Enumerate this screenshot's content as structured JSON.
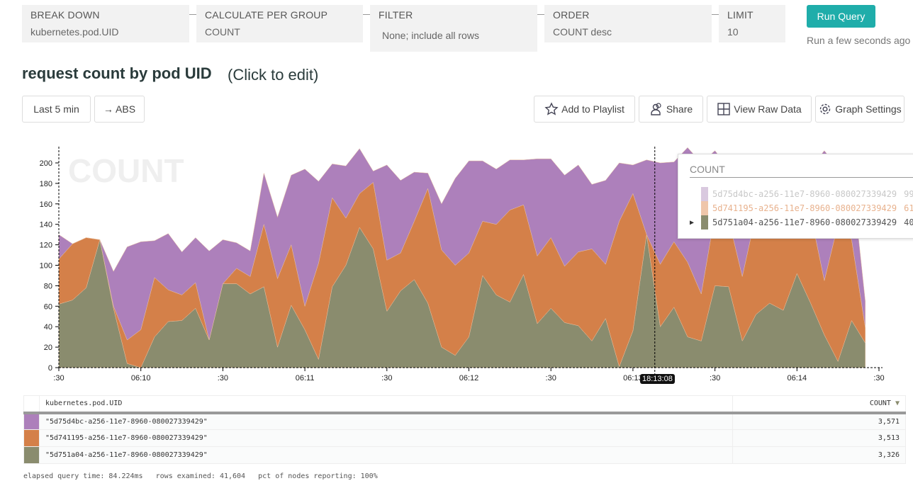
{
  "query": {
    "breakdown": {
      "label": "BREAK DOWN",
      "value": "kubernetes.pod.UID"
    },
    "calculate": {
      "label": "CALCULATE PER GROUP",
      "value": "COUNT"
    },
    "filter": {
      "label": "FILTER",
      "value": "None; include all rows"
    },
    "order": {
      "label": "ORDER",
      "value": "COUNT desc"
    },
    "limit": {
      "label": "LIMIT",
      "value": "10"
    },
    "run_label": "Run Query",
    "run_status": "Run a few seconds ago"
  },
  "header": {
    "title": "request count by pod UID",
    "edit_hint": "(Click to edit)"
  },
  "controls": {
    "time_range": "Last 5 min",
    "abs": "→ ABS",
    "add_playlist": "Add to Playlist",
    "share": "Share",
    "view_raw": "View Raw Data",
    "graph_settings": "Graph Settings"
  },
  "colors": {
    "accent": "#1fadaa",
    "purple": "#ad80bb",
    "orange": "#d48049",
    "green": "#8a8c6e"
  },
  "chart_data": {
    "type": "area",
    "stacked": true,
    "watermark": "COUNT",
    "ylim": [
      0,
      215
    ],
    "y_ticks": [
      0,
      20,
      40,
      60,
      80,
      100,
      120,
      140,
      160,
      180,
      200
    ],
    "x_ticks": [
      {
        "label": ":30",
        "time": "06:09:30"
      },
      {
        "label": "06:10",
        "time": "06:10:00"
      },
      {
        "label": ":30",
        "time": "06:10:30"
      },
      {
        "label": "06:11",
        "time": "06:11:00"
      },
      {
        "label": ":30",
        "time": "06:11:30"
      },
      {
        "label": "06:12",
        "time": "06:12:00"
      },
      {
        "label": ":30",
        "time": "06:12:30"
      },
      {
        "label": "06:13",
        "time": "06:13:00"
      },
      {
        "label": ":30",
        "time": "06:13:30"
      },
      {
        "label": "06:14",
        "time": "06:14:00"
      },
      {
        "label": ":30",
        "time": "06:14:30"
      }
    ],
    "x": [
      "06:09:30",
      "06:09:35",
      "06:09:40",
      "06:09:45",
      "06:09:50",
      "06:09:55",
      "06:10:00",
      "06:10:05",
      "06:10:10",
      "06:10:15",
      "06:10:20",
      "06:10:25",
      "06:10:30",
      "06:10:35",
      "06:10:40",
      "06:10:45",
      "06:10:50",
      "06:10:55",
      "06:11:00",
      "06:11:05",
      "06:11:10",
      "06:11:15",
      "06:11:20",
      "06:11:25",
      "06:11:30",
      "06:11:35",
      "06:11:40",
      "06:11:45",
      "06:11:50",
      "06:11:55",
      "06:12:00",
      "06:12:05",
      "06:12:10",
      "06:12:15",
      "06:12:20",
      "06:12:25",
      "06:12:30",
      "06:12:35",
      "06:12:40",
      "06:12:45",
      "06:12:50",
      "06:12:55",
      "06:13:00",
      "06:13:05",
      "06:13:10",
      "06:13:15",
      "06:13:20",
      "06:13:25",
      "06:13:30",
      "06:13:35",
      "06:13:40",
      "06:13:45",
      "06:13:50",
      "06:13:55",
      "06:14:00",
      "06:14:05",
      "06:14:10",
      "06:14:15",
      "06:14:20",
      "06:14:25"
    ],
    "series": [
      {
        "name": "5d751a04-a256-11e7-8960-080027339429",
        "color": "#8a8c6e",
        "values": [
          62,
          66,
          78,
          125,
          58,
          4,
          0,
          30,
          45,
          46,
          58,
          27,
          82,
          82,
          72,
          79,
          20,
          61,
          37,
          8,
          79,
          100,
          137,
          116,
          55,
          75,
          86,
          63,
          20,
          12,
          30,
          90,
          71,
          64,
          91,
          43,
          58,
          44,
          41,
          26,
          48,
          1,
          36,
          130,
          40,
          59,
          30,
          26,
          80,
          79,
          26,
          52,
          63,
          56,
          92,
          63,
          32,
          6,
          46,
          24
        ]
      },
      {
        "name": "5d741195-a256-11e7-8960-080027339429",
        "color": "#d48049",
        "values": [
          44,
          55,
          49,
          0,
          2,
          23,
          37,
          58,
          31,
          25,
          25,
          0,
          0,
          15,
          17,
          61,
          67,
          59,
          23,
          94,
          87,
          46,
          33,
          65,
          50,
          37,
          57,
          112,
          95,
          88,
          82,
          53,
          69,
          90,
          68,
          66,
          69,
          55,
          72,
          90,
          53,
          142,
          134,
          0,
          61,
          64,
          73,
          46,
          70,
          66,
          63,
          98,
          87,
          94,
          58,
          87,
          53,
          134,
          79,
          15
        ]
      },
      {
        "name": "5d75d4bc-a256-11e7-8960-080027339429",
        "color": "#ad80bb",
        "values": [
          24,
          0,
          0,
          0,
          34,
          91,
          86,
          36,
          55,
          42,
          44,
          87,
          43,
          25,
          25,
          50,
          60,
          68,
          134,
          80,
          33,
          51,
          44,
          11,
          93,
          71,
          48,
          15,
          45,
          85,
          90,
          59,
          54,
          49,
          44,
          95,
          77,
          89,
          85,
          63,
          82,
          57,
          28,
          73,
          99,
          78,
          112,
          128,
          62,
          50,
          106,
          45,
          45,
          45,
          45,
          45,
          127,
          55,
          65,
          26
        ]
      }
    ],
    "crosshair": {
      "time": "06:13:08",
      "label": "18:13:08"
    }
  },
  "tooltip": {
    "title": "COUNT",
    "rows": [
      {
        "name": "5d75d4bc-a256-11e7-8960-080027339429",
        "value": "99",
        "color": "#d9c9df",
        "text_color": "#c8c8c8"
      },
      {
        "name": "5d741195-a256-11e7-8960-080027339429",
        "value": "61",
        "color": "#efc6aa",
        "text_color": "#e8b28e"
      },
      {
        "name": "5d751a04-a256-11e7-8960-080027339429",
        "value": "40",
        "color": "#8a8c6e",
        "text_color": "#555"
      }
    ]
  },
  "table": {
    "headers": [
      "kubernetes.pod.UID",
      "COUNT"
    ],
    "rows": [
      {
        "uid": "\"5d75d4bc-a256-11e7-8960-080027339429\"",
        "count": "3,571",
        "color": "#ad80bb"
      },
      {
        "uid": "\"5d741195-a256-11e7-8960-080027339429\"",
        "count": "3,513",
        "color": "#d48049"
      },
      {
        "uid": "\"5d751a04-a256-11e7-8960-080027339429\"",
        "count": "3,326",
        "color": "#8a8c6e"
      }
    ]
  },
  "footer": {
    "elapsed": "elapsed query time: 84.224ms",
    "rows": "rows examined: 41,604",
    "pct": "pct of nodes reporting: 100%"
  }
}
